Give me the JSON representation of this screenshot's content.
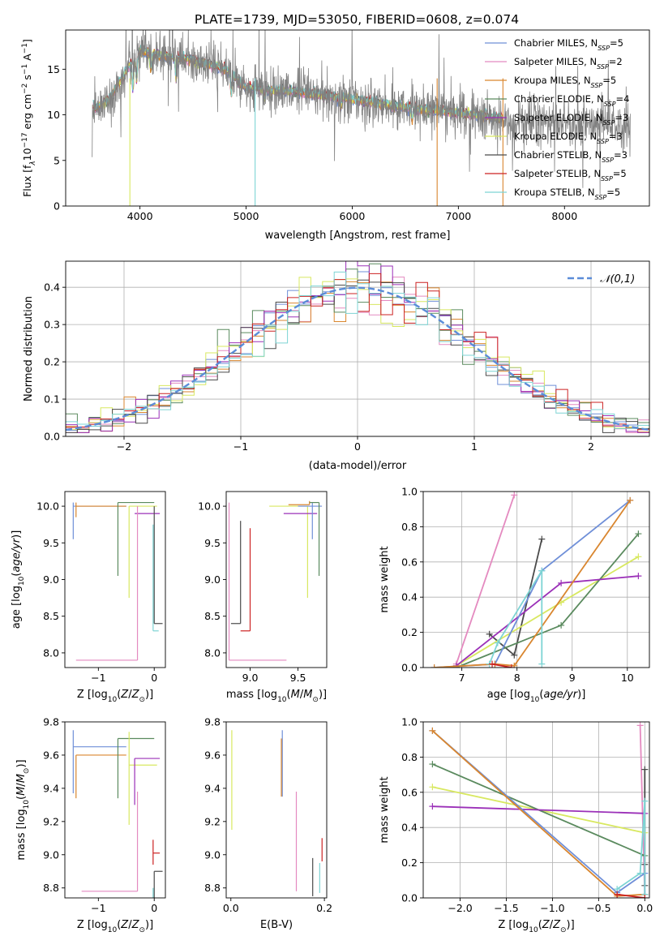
{
  "figure_title": "PLATE=1739, MJD=53050, FIBERID=0608, z=0.074",
  "models": [
    {
      "name": "Chabrier MILES, N_SSP=5",
      "lib": "Chabrier MILES, N",
      "sub": "SSP",
      "eq": "=5",
      "color": "#6f8fd8"
    },
    {
      "name": "Salpeter MILES, N_SSP=2",
      "lib": "Salpeter MILES, N",
      "sub": "SSP",
      "eq": "=2",
      "color": "#e48ac0"
    },
    {
      "name": "Kroupa MILES, N_SSP=5",
      "lib": "Kroupa MILES, N",
      "sub": "SSP",
      "eq": "=5",
      "color": "#d9862f"
    },
    {
      "name": "Chabrier ELODIE, N_SSP=4",
      "lib": "Chabrier ELODIE, N",
      "sub": "SSP",
      "eq": "=4",
      "color": "#5a8a5e"
    },
    {
      "name": "Salpeter ELODIE, N_SSP=3",
      "lib": "Salpeter ELODIE, N",
      "sub": "SSP",
      "eq": "=3",
      "color": "#9b30b8"
    },
    {
      "name": "Kroupa ELODIE, N_SSP=3",
      "lib": "Kroupa ELODIE, N",
      "sub": "SSP",
      "eq": "=3",
      "color": "#d8e860"
    },
    {
      "name": "Chabrier STELIB, N_SSP=3",
      "lib": "Chabrier STELIB, N",
      "sub": "SSP",
      "eq": "=3",
      "color": "#4a4a4a"
    },
    {
      "name": "Salpeter STELIB, N_SSP=5",
      "lib": "Salpeter STELIB, N",
      "sub": "SSP",
      "eq": "=5",
      "color": "#cc2222"
    },
    {
      "name": "Kroupa STELIB, N_SSP=5",
      "lib": "Kroupa STELIB, N",
      "sub": "SSP",
      "eq": "=5",
      "color": "#7dd4d4"
    }
  ],
  "chart_data": [
    {
      "id": "spectrum",
      "type": "line",
      "title": "PLATE=1739, MJD=53050, FIBERID=0608, z=0.074",
      "xlabel": "wavelength [Angstrom, rest frame]",
      "ylabel_parts": [
        "Flux [f",
        "λ",
        "10",
        "−17",
        " erg cm",
        "−2",
        " s",
        "−1",
        " A",
        "−1",
        "]"
      ],
      "xlim": [
        3300,
        8800
      ],
      "ylim": [
        0,
        19.3
      ],
      "xticks": [
        4000,
        5000,
        6000,
        7000,
        8000
      ],
      "yticks": [
        0,
        5,
        10,
        15
      ],
      "legend_position": "top-right",
      "data_color": "#808080",
      "data_profile": {
        "x": [
          3550,
          3700,
          3850,
          4000,
          4200,
          4500,
          4800,
          5000,
          5500,
          6000,
          6500,
          7000,
          7500,
          8000,
          8600
        ],
        "y": [
          10.5,
          11.5,
          14.5,
          17,
          16.5,
          16,
          15,
          13,
          12.5,
          11.7,
          10.8,
          10.2,
          9.5,
          9.1,
          8.8
        ]
      }
    },
    {
      "id": "residuals",
      "type": "step",
      "xlabel": "(data-model)/error",
      "ylabel": "Normed distribution",
      "xlim": [
        -2.5,
        2.5
      ],
      "ylim": [
        0,
        0.47
      ],
      "xticks": [
        -2,
        -1,
        0,
        1,
        2
      ],
      "yticks": [
        0.0,
        0.1,
        0.2,
        0.3,
        0.4
      ],
      "grid": true,
      "legend": "𝒩(0,1)",
      "legend_position": "top-right",
      "gaussian_color": "#5b8cd8",
      "bin_width": 0.1
    },
    {
      "id": "age-vs-z",
      "type": "errorbar",
      "xlabel": "Z [log10(Z/Z⊙)]",
      "ylabel": "age  [log10(age/yr)]",
      "xlim": [
        -1.6,
        0.2
      ],
      "ylim": [
        7.8,
        10.2
      ],
      "xticks": [
        -1,
        0
      ],
      "yticks": [
        8.0,
        8.5,
        9.0,
        9.5,
        10.0
      ],
      "points": [
        {
          "m": 0,
          "x": -1.45,
          "xerr": [
            0.0,
            0.95
          ],
          "y": 10.0,
          "yerr": [
            0.45,
            0.05
          ]
        },
        {
          "m": 2,
          "x": -1.4,
          "xerr": [
            0.0,
            0.9
          ],
          "y": 10.0,
          "yerr": [
            0.15,
            0.05
          ]
        },
        {
          "m": 3,
          "x": -0.65,
          "xerr": [
            0.0,
            0.65
          ],
          "y": 10.05,
          "yerr": [
            1.0,
            0.0
          ]
        },
        {
          "m": 5,
          "x": -0.45,
          "xerr": [
            0.0,
            0.5
          ],
          "y": 10.0,
          "yerr": [
            1.25,
            0.0
          ]
        },
        {
          "m": 4,
          "x": -0.35,
          "xerr": [
            0.0,
            0.45
          ],
          "y": 9.9,
          "yerr": [
            0.0,
            0.0
          ]
        },
        {
          "m": 1,
          "x": -0.3,
          "xerr": [
            1.1,
            0.0
          ],
          "y": 7.9,
          "yerr": [
            0.0,
            2.1
          ]
        },
        {
          "m": 8,
          "x": -0.02,
          "xerr": [
            0.0,
            0.1
          ],
          "y": 8.3,
          "yerr": [
            0.0,
            1.45
          ]
        },
        {
          "m": 6,
          "x": 0.0,
          "xerr": [
            0.0,
            0.15
          ],
          "y": 8.4,
          "yerr": [
            0.0,
            1.6
          ]
        }
      ]
    },
    {
      "id": "age-vs-mass",
      "type": "errorbar",
      "xlabel": "mass [log10(M/M⊙)]",
      "ylabel": "",
      "xlim": [
        8.75,
        9.8
      ],
      "ylim": [
        7.8,
        10.2
      ],
      "xticks": [
        9.0,
        9.5
      ],
      "yticks": [
        8.0,
        8.5,
        9.0,
        9.5,
        10.0
      ],
      "points": [
        {
          "m": 1,
          "x": 8.78,
          "xerr": [
            0.0,
            0.6
          ],
          "y": 7.9,
          "yerr": [
            0.0,
            2.15
          ]
        },
        {
          "m": 6,
          "x": 8.9,
          "xerr": [
            0.1,
            0.0
          ],
          "y": 8.4,
          "yerr": [
            0.0,
            1.4
          ]
        },
        {
          "m": 7,
          "x": 9.0,
          "xerr": [
            0.1,
            0.0
          ],
          "y": 8.3,
          "yerr": [
            0.0,
            1.4
          ]
        },
        {
          "m": 5,
          "x": 9.6,
          "xerr": [
            0.4,
            0.0
          ],
          "y": 10.0,
          "yerr": [
            1.25,
            0.0
          ]
        },
        {
          "m": 4,
          "x": 9.7,
          "xerr": [
            0.35,
            0.0
          ],
          "y": 9.9,
          "yerr": [
            0.0,
            0.0
          ]
        },
        {
          "m": 0,
          "x": 9.65,
          "xerr": [
            0.15,
            0.1
          ],
          "y": 10.0,
          "yerr": [
            0.45,
            0.05
          ]
        },
        {
          "m": 2,
          "x": 9.62,
          "xerr": [
            0.22,
            0.0
          ],
          "y": 10.02,
          "yerr": [
            0.0,
            0.05
          ]
        },
        {
          "m": 3,
          "x": 9.72,
          "xerr": [
            0.1,
            0.0
          ],
          "y": 10.05,
          "yerr": [
            1.0,
            0.0
          ]
        }
      ]
    },
    {
      "id": "weight-vs-age",
      "type": "line",
      "xlabel": "age  [log10(age/yr)]",
      "ylabel": "mass weight",
      "xlim": [
        6.3,
        10.4
      ],
      "ylim": [
        0,
        1.0
      ],
      "xticks": [
        7,
        8,
        9,
        10
      ],
      "yticks": [
        0.0,
        0.2,
        0.4,
        0.6,
        0.8,
        1.0
      ],
      "grid": true,
      "series": [
        {
          "m": 1,
          "x": [
            6.9,
            7.95
          ],
          "y": [
            0.02,
            0.98
          ]
        },
        {
          "m": 6,
          "x": [
            7.5,
            7.95,
            8.45
          ],
          "y": [
            0.19,
            0.07,
            0.73
          ]
        },
        {
          "m": 5,
          "x": [
            6.9,
            8.8,
            10.2
          ],
          "y": [
            0.01,
            0.37,
            0.63
          ]
        },
        {
          "m": 3,
          "x": [
            6.9,
            8.8,
            10.2
          ],
          "y": [
            0.0,
            0.24,
            0.76
          ]
        },
        {
          "m": 4,
          "x": [
            6.9,
            8.8,
            10.2
          ],
          "y": [
            0.01,
            0.48,
            0.52
          ]
        },
        {
          "m": 0,
          "x": [
            6.5,
            7.6,
            8.45,
            10.05
          ],
          "y": [
            0.0,
            0.02,
            0.55,
            0.95
          ]
        },
        {
          "m": 2,
          "x": [
            6.5,
            7.6,
            7.95,
            10.05
          ],
          "y": [
            0.0,
            0.02,
            0.01,
            0.95
          ]
        },
        {
          "m": 8,
          "x": [
            7.5,
            7.65,
            8.45,
            8.45
          ],
          "y": [
            0.02,
            0.14,
            0.55,
            0.02
          ]
        },
        {
          "m": 7,
          "x": [
            7.55,
            7.9
          ],
          "y": [
            0.02,
            0.0
          ]
        }
      ]
    },
    {
      "id": "mass-vs-z",
      "type": "errorbar",
      "xlabel": "Z [log10(Z/Z⊙)]",
      "ylabel": "mass [log10(M/M⊙)]",
      "xlim": [
        -1.6,
        0.2
      ],
      "ylim": [
        8.74,
        9.8
      ],
      "xticks": [
        -1,
        0
      ],
      "yticks": [
        8.8,
        9.0,
        9.2,
        9.4,
        9.6,
        9.8
      ],
      "points": [
        {
          "m": 0,
          "x": -1.45,
          "xerr": [
            0.0,
            0.95
          ],
          "y": 9.65,
          "yerr": [
            0.28,
            0.1
          ]
        },
        {
          "m": 2,
          "x": -1.4,
          "xerr": [
            0.0,
            0.9
          ],
          "y": 9.6,
          "yerr": [
            0.26,
            0.0
          ]
        },
        {
          "m": 3,
          "x": -0.65,
          "xerr": [
            0.0,
            0.65
          ],
          "y": 9.7,
          "yerr": [
            0.36,
            0.0
          ]
        },
        {
          "m": 5,
          "x": -0.45,
          "xerr": [
            0.0,
            0.5
          ],
          "y": 9.54,
          "yerr": [
            0.36,
            0.2
          ]
        },
        {
          "m": 4,
          "x": -0.35,
          "xerr": [
            0.0,
            0.45
          ],
          "y": 9.58,
          "yerr": [
            0.28,
            0.0
          ]
        },
        {
          "m": 1,
          "x": -0.3,
          "xerr": [
            1.0,
            0.0
          ],
          "y": 8.78,
          "yerr": [
            0.0,
            0.6
          ]
        },
        {
          "m": 7,
          "x": -0.02,
          "xerr": [
            0.0,
            0.12
          ],
          "y": 9.01,
          "yerr": [
            0.07,
            0.08
          ]
        },
        {
          "m": 6,
          "x": 0.0,
          "xerr": [
            0.0,
            0.15
          ],
          "y": 8.9,
          "yerr": [
            0.18,
            0.0
          ]
        },
        {
          "m": 8,
          "x": -0.02,
          "xerr": [
            0.0,
            0.0
          ],
          "y": 8.8,
          "yerr": [
            0.08,
            0.0
          ]
        }
      ]
    },
    {
      "id": "mass-vs-ebv",
      "type": "errorbar",
      "xlabel": "E(B-V)",
      "ylabel": "",
      "xlim": [
        -0.01,
        0.205
      ],
      "ylim": [
        8.74,
        9.8
      ],
      "xticks": [
        0.0,
        0.2
      ],
      "yticks": [
        8.8,
        9.0,
        9.2,
        9.4,
        9.6,
        9.8
      ],
      "points": [
        {
          "m": 5,
          "x": 0.002,
          "xerr": [
            0.0,
            0.0
          ],
          "y": 9.45,
          "yerr": [
            0.3,
            0.3
          ]
        },
        {
          "m": 0,
          "x": 0.11,
          "xerr": [
            0.0,
            0.0
          ],
          "y": 9.6,
          "yerr": [
            0.25,
            0.15
          ]
        },
        {
          "m": 2,
          "x": 0.108,
          "xerr": [
            0.0,
            0.0
          ],
          "y": 9.55,
          "yerr": [
            0.2,
            0.15
          ]
        },
        {
          "m": 1,
          "x": 0.14,
          "xerr": [
            0.0,
            0.0
          ],
          "y": 9.0,
          "yerr": [
            0.22,
            0.38
          ]
        },
        {
          "m": 6,
          "x": 0.175,
          "xerr": [
            0.0,
            0.0
          ],
          "y": 8.9,
          "yerr": [
            0.15,
            0.08
          ]
        },
        {
          "m": 7,
          "x": 0.195,
          "xerr": [
            0.0,
            0.0
          ],
          "y": 9.02,
          "yerr": [
            0.06,
            0.08
          ]
        },
        {
          "m": 8,
          "x": 0.19,
          "xerr": [
            0.0,
            0.0
          ],
          "y": 8.85,
          "yerr": [
            0.08,
            0.1
          ]
        }
      ]
    },
    {
      "id": "weight-vs-z",
      "type": "line",
      "xlabel": "Z [log10(Z/Z⊙)]",
      "ylabel": "mass weight",
      "xlim": [
        -2.4,
        0.05
      ],
      "ylim": [
        0,
        1.0
      ],
      "xticks": [
        -2.0,
        -1.5,
        -1.0,
        -0.5,
        0.0
      ],
      "yticks": [
        0.0,
        0.2,
        0.4,
        0.6,
        0.8,
        1.0
      ],
      "grid": true,
      "series": [
        {
          "m": 1,
          "x": [
            -0.05,
            0.0
          ],
          "y": [
            0.98,
            0.02
          ]
        },
        {
          "m": 6,
          "x": [
            0.0,
            0.0,
            0.0
          ],
          "y": [
            0.73,
            0.07,
            0.19
          ]
        },
        {
          "m": 5,
          "x": [
            -2.3,
            0.0
          ],
          "y": [
            0.63,
            0.37
          ]
        },
        {
          "m": 3,
          "x": [
            -2.3,
            0.0
          ],
          "y": [
            0.76,
            0.24
          ]
        },
        {
          "m": 4,
          "x": [
            -2.3,
            0.0
          ],
          "y": [
            0.52,
            0.48
          ]
        },
        {
          "m": 0,
          "x": [
            -2.3,
            -0.3,
            0.0,
            0.0
          ],
          "y": [
            0.95,
            0.03,
            0.14,
            0.02
          ]
        },
        {
          "m": 2,
          "x": [
            -2.3,
            -0.3,
            0.0
          ],
          "y": [
            0.95,
            0.01,
            0.02
          ]
        },
        {
          "m": 8,
          "x": [
            -0.3,
            -0.05,
            0.0,
            0.0
          ],
          "y": [
            0.05,
            0.14,
            0.55,
            0.02
          ]
        },
        {
          "m": 7,
          "x": [
            -0.3,
            0.0
          ],
          "y": [
            0.02,
            0.0
          ]
        }
      ]
    }
  ]
}
